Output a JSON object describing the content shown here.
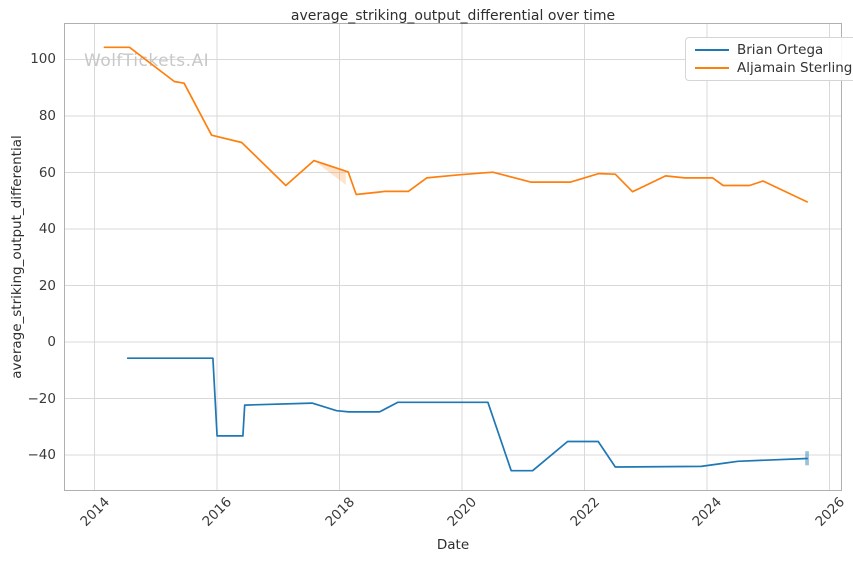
{
  "figure": {
    "watermark": "WolfTickets.AI",
    "watermark_color": "#c8c8c8",
    "background_color": "#ffffff",
    "grid_color": "#d9d9d9",
    "spine_color": "#b0b0b0",
    "text_color": "#3b3b3b"
  },
  "chart_data": {
    "type": "line",
    "title": "average_striking_output_differential over time",
    "xlabel": "Date",
    "ylabel": "average_striking_output_differential",
    "grid": true,
    "legend_position": "upper-right",
    "xlim": [
      2013.5,
      2026.2
    ],
    "ylim": [
      -52.7,
      112.9
    ],
    "xticks": [
      2014,
      2016,
      2018,
      2020,
      2022,
      2024,
      2026
    ],
    "xtick_labels": [
      "2014",
      "2016",
      "2018",
      "2020",
      "2022",
      "2024",
      "2026"
    ],
    "yticks": [
      100,
      80,
      60,
      40,
      20,
      0,
      -20,
      -40
    ],
    "ytick_labels": [
      "100",
      "80",
      "60",
      "40",
      "20",
      "0",
      "−20",
      "−40"
    ],
    "series": [
      {
        "name": "Brian Ortega",
        "color": "#1f77b4",
        "points": [
          [
            2014.54,
            -5.7
          ],
          [
            2015.93,
            -5.7
          ],
          [
            2016.0,
            -33.2
          ],
          [
            2016.42,
            -33.2
          ],
          [
            2016.45,
            -22.3
          ],
          [
            2017.55,
            -21.6
          ],
          [
            2017.95,
            -24.3
          ],
          [
            2018.15,
            -24.7
          ],
          [
            2018.65,
            -24.7
          ],
          [
            2018.95,
            -21.3
          ],
          [
            2020.42,
            -21.3
          ],
          [
            2020.8,
            -45.5
          ],
          [
            2021.15,
            -45.5
          ],
          [
            2021.72,
            -35.2
          ],
          [
            2022.22,
            -35.2
          ],
          [
            2022.5,
            -44.2
          ],
          [
            2023.9,
            -44.0
          ],
          [
            2024.3,
            -42.8
          ],
          [
            2024.5,
            -42.2
          ],
          [
            2025.63,
            -41.2
          ]
        ]
      },
      {
        "name": "Aljamain Sterling",
        "color": "#ff7f0e",
        "points": [
          [
            2014.16,
            104.3
          ],
          [
            2014.57,
            104.3
          ],
          [
            2015.3,
            92.2
          ],
          [
            2015.46,
            91.6
          ],
          [
            2015.91,
            73.2
          ],
          [
            2016.4,
            70.6
          ],
          [
            2017.12,
            55.4
          ],
          [
            2017.58,
            64.2
          ],
          [
            2018.14,
            60.2
          ],
          [
            2018.27,
            52.2
          ],
          [
            2018.74,
            53.3
          ],
          [
            2019.12,
            53.3
          ],
          [
            2019.42,
            58.1
          ],
          [
            2019.95,
            59.2
          ],
          [
            2020.5,
            60.1
          ],
          [
            2021.12,
            56.6
          ],
          [
            2021.77,
            56.6
          ],
          [
            2022.23,
            59.6
          ],
          [
            2022.5,
            59.4
          ],
          [
            2022.78,
            53.2
          ],
          [
            2023.32,
            58.8
          ],
          [
            2023.63,
            58.1
          ],
          [
            2024.09,
            58.1
          ],
          [
            2024.26,
            55.4
          ],
          [
            2024.69,
            55.4
          ],
          [
            2024.91,
            57.0
          ],
          [
            2025.63,
            49.6
          ]
        ]
      }
    ],
    "bands": [
      {
        "series": "Aljamain Sterling",
        "color": "#ff7f0e",
        "opacity": 0.22,
        "polygon": [
          [
            2017.58,
            64.2
          ],
          [
            2018.1,
            60.6
          ],
          [
            2018.1,
            55.6
          ]
        ]
      },
      {
        "series": "Brian Ortega",
        "color": "#1f77b4",
        "opacity": 0.45,
        "polygon": [
          [
            2025.6,
            -38.6
          ],
          [
            2025.66,
            -38.6
          ],
          [
            2025.66,
            -43.6
          ],
          [
            2025.6,
            -43.6
          ]
        ]
      }
    ]
  }
}
